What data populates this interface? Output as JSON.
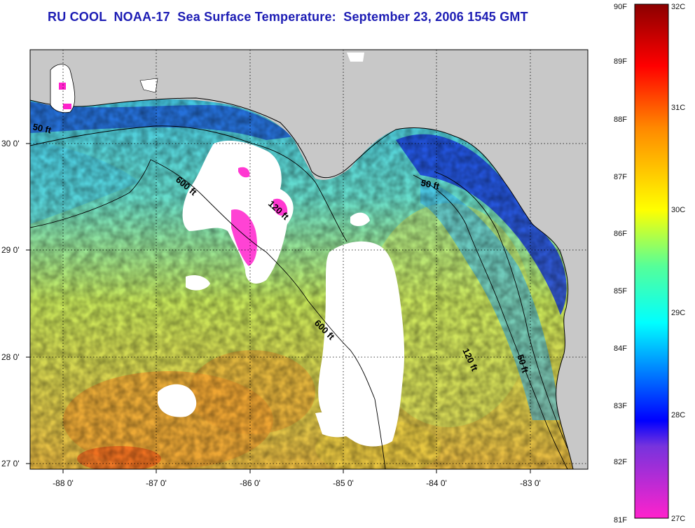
{
  "title": "RU COOL  NOAA-17  Sea Surface Temperature:  September 23, 2006 1545 GMT",
  "map": {
    "lon_ticks": [
      "-88 0'",
      "-87 0'",
      "-86 0'",
      "-85 0'",
      "-84 0'",
      "-83 0'"
    ],
    "lat_ticks": [
      "30 0'",
      "29 0'",
      "28 0'",
      "27 0'"
    ],
    "contour_labels": {
      "c50_west": "50 ft",
      "c600_upper": "600 ft",
      "c120_mid": "120 ft",
      "c600_lower": "600 ft",
      "c50_east": "50 ft",
      "c120_east": "120 ft",
      "c50_shelf": "50 ft"
    }
  },
  "colorbar": {
    "fahrenheit_labels": [
      "90F",
      "89F",
      "88F",
      "87F",
      "86F",
      "85F",
      "84F",
      "83F",
      "82F",
      "81F"
    ],
    "celsius_labels": [
      "32C",
      "31C",
      "30C",
      "29C",
      "28C",
      "27C"
    ],
    "colors": [
      "#ff22cc",
      "#0000ff",
      "#00ffff",
      "#ffff00",
      "#ff0000",
      "#8b0000"
    ]
  }
}
